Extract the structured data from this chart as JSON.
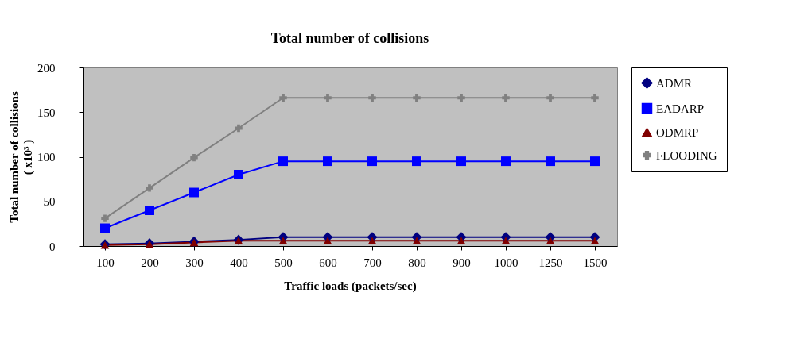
{
  "chart_data": {
    "type": "line",
    "title": "Total number of collisions",
    "xlabel": "Traffic loads (packets/sec)",
    "ylabel": "Total number of collisions\n( x10³ )",
    "categories": [
      "100",
      "200",
      "300",
      "400",
      "500",
      "600",
      "700",
      "800",
      "900",
      "1000",
      "1250",
      "1500"
    ],
    "ylim": [
      0,
      200
    ],
    "yticks": [
      0,
      50,
      100,
      150,
      200
    ],
    "grid": false,
    "legend": "right",
    "series": [
      {
        "name": "ADMR",
        "color": "#000080",
        "marker": "diamond",
        "values": [
          2,
          3,
          5,
          7,
          10,
          10,
          10,
          10,
          10,
          10,
          10,
          10
        ]
      },
      {
        "name": "EADARP",
        "color": "#0000ff",
        "marker": "square",
        "values": [
          20,
          40,
          60,
          80,
          95,
          95,
          95,
          95,
          95,
          95,
          95,
          95
        ]
      },
      {
        "name": "ODMRP",
        "color": "#800000",
        "marker": "triangle",
        "values": [
          1,
          2,
          4,
          6,
          6,
          6,
          6,
          6,
          6,
          6,
          6,
          6
        ]
      },
      {
        "name": "FLOODING",
        "color": "#808080",
        "marker": "cross",
        "values": [
          31,
          65,
          99,
          132,
          166,
          166,
          166,
          166,
          166,
          166,
          166,
          166
        ]
      }
    ]
  }
}
